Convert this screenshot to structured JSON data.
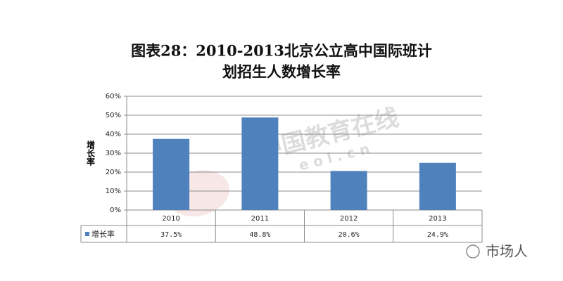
{
  "chart_data": {
    "type": "bar",
    "title": [
      "图表28：2010-2013北京公立高中国际班计",
      "划招生人数增长率"
    ],
    "y_label": "增长率",
    "categories": [
      "2010",
      "2011",
      "2012",
      "2013"
    ],
    "series": [
      {
        "name": "增长率",
        "color": "#4f81bd",
        "values": [
          37.5,
          48.8,
          20.6,
          24.9
        ],
        "value_labels": [
          "37.5%",
          "48.8%",
          "20.6%",
          "24.9%"
        ]
      }
    ],
    "ylim": [
      0,
      60
    ],
    "yticks": [
      {
        "value": 0,
        "label": "0%"
      },
      {
        "value": 10,
        "label": "10%"
      },
      {
        "value": 20,
        "label": "20%"
      },
      {
        "value": 30,
        "label": "30%"
      },
      {
        "value": 40,
        "label": "40%"
      },
      {
        "value": 50,
        "label": "50%"
      },
      {
        "value": 60,
        "label": "60%"
      }
    ],
    "grid": true,
    "data_table": true
  },
  "watermark": {
    "name": "中国教育在线",
    "url": "e o l . c n"
  },
  "footer": "市场人"
}
